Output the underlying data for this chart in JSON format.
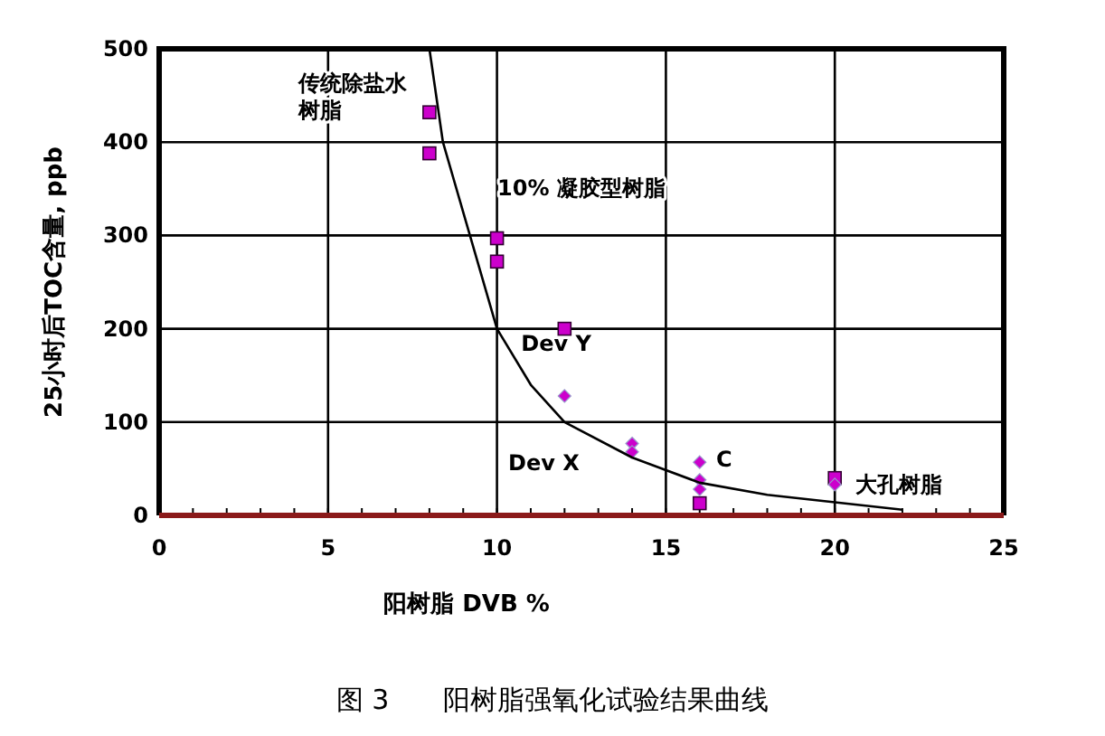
{
  "chart_data": {
    "type": "scatter",
    "xlabel": "阳树脂 DVB %",
    "ylabel": "25小时后TOC含量, ppb",
    "xlim": [
      0,
      25
    ],
    "ylim": [
      0,
      500
    ],
    "xticks": [
      0,
      5,
      10,
      15,
      20,
      25
    ],
    "yticks": [
      0,
      100,
      200,
      300,
      400,
      500
    ],
    "grid": true,
    "series": [
      {
        "color": "#cc00cc",
        "marker": "square",
        "x": [
          8,
          8,
          10,
          10,
          12,
          16,
          20
        ],
        "values": [
          432,
          388,
          297,
          272,
          200,
          13,
          40
        ]
      },
      {
        "color": "#cc00cc",
        "marker": "diamond",
        "x": [
          12,
          14,
          14,
          16,
          16,
          16,
          20
        ],
        "values": [
          128,
          77,
          68,
          57,
          38,
          28,
          33
        ]
      },
      {
        "type": "line",
        "color": "#000000",
        "marker": "none",
        "line_style": "solid",
        "x": [
          8,
          8.4,
          9.2,
          10,
          11,
          12,
          14,
          16,
          18,
          20,
          22
        ],
        "values": [
          500,
          400,
          300,
          200,
          140,
          100,
          62,
          35,
          22,
          14,
          6
        ]
      }
    ],
    "annotations": [
      "传统除盐水树脂",
      "10% 凝胶型树脂",
      {
        "text": "Dev Y",
        "x": 12,
        "y": 128
      },
      "Dev X",
      "C",
      "大孔树脂",
      "图 3　　阳树脂强氧化试验结果曲线"
    ]
  }
}
